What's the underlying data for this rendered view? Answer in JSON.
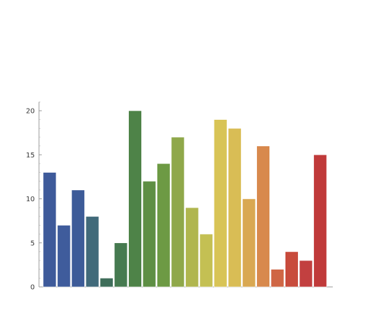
{
  "chart_data": {
    "type": "bar",
    "title": "",
    "xlabel": "",
    "ylabel": "",
    "ylim": [
      0,
      21
    ],
    "yticks": [
      0,
      5,
      10,
      15,
      20
    ],
    "grid": false,
    "values": [
      13,
      7,
      11,
      8,
      1,
      5,
      20,
      12,
      14,
      17,
      9,
      6,
      19,
      18,
      10,
      16,
      2,
      4,
      3,
      15
    ],
    "colors": [
      "#3e5a9a",
      "#3f5c9c",
      "#3d5b98",
      "#416a7a",
      "#3f6e5a",
      "#467a50",
      "#4e8348",
      "#5e8f44",
      "#6d9a44",
      "#8fa84a",
      "#b0b64e",
      "#c4c053",
      "#d8c456",
      "#d9bd55",
      "#d9a852",
      "#d8894d",
      "#cf6645",
      "#c84b3c",
      "#c24040",
      "#c03a3a"
    ]
  }
}
